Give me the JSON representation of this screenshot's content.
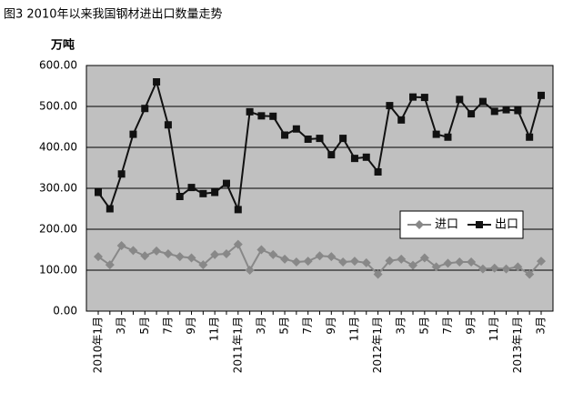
{
  "chart_data": {
    "type": "line",
    "title": "图3 2010年以来我国钢材进出口数量走势",
    "y_label": "万吨",
    "categories": [
      "2010年1月",
      null,
      "3月",
      null,
      "5月",
      null,
      "7月",
      null,
      "9月",
      null,
      "11月",
      null,
      "2011年1月",
      null,
      "3月",
      null,
      "5月",
      null,
      "7月",
      null,
      "9月",
      null,
      "11月",
      null,
      "2012年1月",
      null,
      "3月",
      null,
      "5月",
      null,
      "7月",
      null,
      "9月",
      null,
      "11月",
      null,
      "2013年1月",
      null,
      "3月"
    ],
    "series": [
      {
        "name": "进口",
        "color": "#888888",
        "marker": "diamond",
        "values": [
          133,
          113,
          160,
          148,
          135,
          147,
          140,
          133,
          130,
          113,
          138,
          140,
          163,
          100,
          150,
          138,
          127,
          120,
          122,
          135,
          133,
          120,
          122,
          118,
          90,
          123,
          127,
          112,
          130,
          108,
          117,
          120,
          120,
          103,
          105,
          103,
          108,
          90,
          122
        ]
      },
      {
        "name": "出口",
        "color": "#111111",
        "marker": "square",
        "values": [
          290,
          250,
          335,
          432,
          495,
          560,
          455,
          280,
          302,
          287,
          290,
          312,
          248,
          487,
          477,
          476,
          430,
          445,
          420,
          422,
          382,
          422,
          373,
          376,
          340,
          502,
          467,
          523,
          522,
          432,
          425,
          517,
          482,
          512,
          488,
          492,
          490,
          425,
          527
        ]
      }
    ],
    "ylim": [
      0,
      600
    ],
    "yticks": [
      {
        "value": 0,
        "label": "0.00"
      },
      {
        "value": 100,
        "label": "100.00"
      },
      {
        "value": 200,
        "label": "200.00"
      },
      {
        "value": 300,
        "label": "300.00"
      },
      {
        "value": 400,
        "label": "400.00"
      },
      {
        "value": 500,
        "label": "500.00"
      },
      {
        "value": 600,
        "label": "600.00"
      }
    ],
    "grid": true,
    "legend": "right"
  }
}
